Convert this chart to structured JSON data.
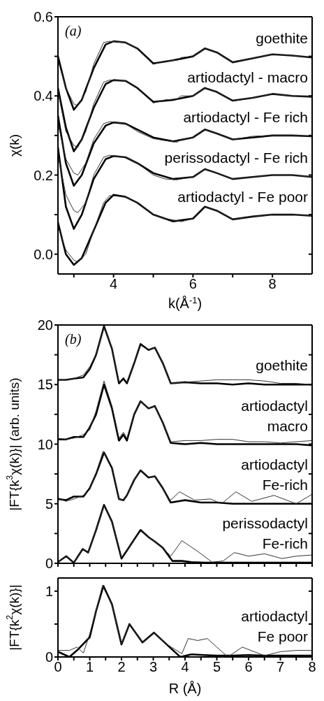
{
  "chart_data": [
    {
      "type": "line",
      "xlabel": "k(Å$^{-1}$)",
      "ylabel": "χ(k)",
      "xlim": [
        2.6,
        9
      ],
      "ylim": [
        -0.05,
        0.6
      ],
      "xticks": [
        {
          "value": 3,
          "label": null
        },
        4,
        {
          "value": 5,
          "label": null
        },
        6,
        {
          "value": 7,
          "label": null
        },
        8
      ],
      "yticks": [
        {
          "value": 0,
          "label": "0.0"
        },
        {
          "value": 0.1,
          "label": null
        },
        0.2,
        {
          "value": 0.3,
          "label": null
        },
        0.4,
        {
          "value": 0.5,
          "label": null
        },
        0.6
      ],
      "annotations": [
        "(a)"
      ],
      "legend": "right",
      "series": [
        {
          "name": "goethite",
          "color": "#000000",
          "x": [
            2.6,
            2.8,
            3.0,
            3.2,
            3.5,
            3.8,
            4.0,
            4.3,
            4.6,
            5.0,
            5.5,
            6.0,
            6.3,
            6.6,
            7.0,
            7.5,
            8.0,
            8.5,
            9.0
          ],
          "values": [
            0.5,
            0.42,
            0.365,
            0.39,
            0.47,
            0.53,
            0.538,
            0.535,
            0.52,
            0.482,
            0.49,
            0.5,
            0.52,
            0.51,
            0.485,
            0.495,
            0.505,
            0.502,
            0.497
          ]
        },
        {
          "color": "#333333",
          "x": [
            2.6,
            2.8,
            3.0,
            3.1,
            3.3,
            3.5,
            3.75,
            3.9,
            4.3,
            4.6,
            5.0,
            5.3,
            5.6,
            5.7,
            6.0,
            6.3,
            6.6,
            7.0,
            7.5,
            8.0,
            8.5,
            9.0
          ],
          "values": [
            0.49,
            0.42,
            0.38,
            0.375,
            0.41,
            0.48,
            0.535,
            0.538,
            0.535,
            0.52,
            0.48,
            0.488,
            0.49,
            0.497,
            0.5,
            0.52,
            0.51,
            0.485,
            0.495,
            0.505,
            0.502,
            0.497
          ]
        },
        {
          "name": "artiodactyl - macro",
          "color": "#000000",
          "x": [
            2.6,
            2.8,
            3.0,
            3.2,
            3.5,
            3.8,
            4.0,
            4.3,
            4.6,
            5.0,
            5.5,
            6.0,
            6.3,
            6.6,
            7.0,
            7.5,
            8.0,
            8.5,
            9.0
          ],
          "values": [
            0.42,
            0.32,
            0.26,
            0.29,
            0.37,
            0.43,
            0.44,
            0.438,
            0.42,
            0.385,
            0.39,
            0.4,
            0.42,
            0.41,
            0.388,
            0.395,
            0.405,
            0.4,
            0.398
          ]
        },
        {
          "color": "#333333",
          "x": [
            2.6,
            2.8,
            3.0,
            3.1,
            3.3,
            3.5,
            3.75,
            3.9,
            4.3,
            4.6,
            5.0,
            5.3,
            5.6,
            5.7,
            6.0,
            6.3,
            6.6,
            7.0,
            7.5,
            8.0,
            8.5,
            9.0
          ],
          "values": [
            0.41,
            0.31,
            0.275,
            0.27,
            0.31,
            0.38,
            0.435,
            0.44,
            0.438,
            0.42,
            0.382,
            0.39,
            0.392,
            0.4,
            0.4,
            0.42,
            0.41,
            0.387,
            0.395,
            0.405,
            0.4,
            0.398
          ]
        },
        {
          "name": "artiodactyl - Fe rich",
          "color": "#000000",
          "x": [
            2.6,
            2.8,
            3.0,
            3.2,
            3.5,
            3.8,
            4.0,
            4.3,
            4.6,
            5.0,
            5.5,
            6.0,
            6.3,
            6.6,
            7.0,
            7.5,
            8.0,
            8.5,
            9.0
          ],
          "values": [
            0.35,
            0.23,
            0.173,
            0.2,
            0.28,
            0.325,
            0.333,
            0.33,
            0.315,
            0.295,
            0.285,
            0.295,
            0.315,
            0.305,
            0.29,
            0.295,
            0.3,
            0.3,
            0.298
          ]
        },
        {
          "color": "#333333",
          "x": [
            2.6,
            2.8,
            3.0,
            3.1,
            3.3,
            3.5,
            3.75,
            3.9,
            4.3,
            4.6,
            5.0,
            5.3,
            5.6,
            5.7,
            6.0,
            6.3,
            6.6,
            7.0,
            7.5,
            8.0,
            8.5,
            9.0
          ],
          "values": [
            0.33,
            0.24,
            0.205,
            0.2,
            0.23,
            0.29,
            0.33,
            0.335,
            0.33,
            0.31,
            0.292,
            0.287,
            0.283,
            0.29,
            0.295,
            0.315,
            0.305,
            0.29,
            0.298,
            0.3,
            0.3,
            0.298
          ]
        },
        {
          "name": "perissodactyl - Fe rich",
          "color": "#000000",
          "x": [
            2.6,
            2.8,
            3.0,
            3.2,
            3.5,
            3.8,
            4.0,
            4.3,
            4.6,
            5.0,
            5.5,
            6.0,
            6.3,
            6.6,
            7.0,
            7.5,
            8.0,
            8.5,
            9.0
          ],
          "values": [
            0.27,
            0.12,
            0.064,
            0.1,
            0.19,
            0.24,
            0.248,
            0.245,
            0.23,
            0.205,
            0.19,
            0.195,
            0.215,
            0.205,
            0.19,
            0.195,
            0.2,
            0.2,
            0.195
          ]
        },
        {
          "color": "#333333",
          "x": [
            2.6,
            2.8,
            3.0,
            3.1,
            3.3,
            3.5,
            3.75,
            3.9,
            4.3,
            4.6,
            5.0,
            5.3,
            5.6,
            5.7,
            6.0,
            6.3,
            6.6,
            7.0,
            7.5,
            8.0,
            8.5,
            9.0
          ],
          "values": [
            0.25,
            0.15,
            0.11,
            0.105,
            0.13,
            0.2,
            0.245,
            0.25,
            0.245,
            0.23,
            0.2,
            0.19,
            0.188,
            0.19,
            0.195,
            0.215,
            0.205,
            0.19,
            0.195,
            0.2,
            0.2,
            0.195
          ]
        },
        {
          "name": "artiodactyl - Fe poor",
          "color": "#000000",
          "x": [
            2.6,
            2.8,
            3.0,
            3.2,
            3.5,
            3.8,
            4.0,
            4.3,
            4.6,
            5.0,
            5.5,
            6.0,
            6.3,
            6.6,
            7.0,
            7.5,
            8.0,
            8.5,
            9.0
          ],
          "values": [
            0.08,
            0.0,
            -0.027,
            -0.01,
            0.06,
            0.13,
            0.15,
            0.145,
            0.13,
            0.1,
            0.083,
            0.09,
            0.12,
            0.11,
            0.088,
            0.095,
            0.1,
            0.1,
            0.097
          ]
        },
        {
          "color": "#333333",
          "x": [
            2.6,
            2.8,
            3.0,
            3.1,
            3.3,
            3.5,
            3.75,
            3.9,
            4.3,
            4.6,
            5.0,
            5.3,
            5.6,
            5.7,
            6.0,
            6.3,
            6.6,
            7.0,
            7.5,
            8.0,
            8.5,
            9.0
          ],
          "values": [
            0.07,
            0.01,
            -0.015,
            -0.02,
            0.0,
            0.06,
            0.13,
            0.148,
            0.145,
            0.13,
            0.1,
            0.09,
            0.085,
            0.082,
            0.09,
            0.12,
            0.11,
            0.088,
            0.095,
            0.1,
            0.1,
            0.097
          ]
        }
      ]
    },
    {
      "type": "line",
      "ylabel": "|FT{k$^{3}$χ(k)}| (arb. units)",
      "xlim": [
        0,
        8
      ],
      "ylim": [
        0,
        20
      ],
      "tick_labels": "y",
      "xticks": [
        0,
        0.5,
        1,
        1.5,
        2,
        2.5,
        3,
        3.5,
        4,
        4.5,
        5,
        5.5,
        6,
        6.5,
        7,
        7.5,
        8
      ],
      "yticks": [
        0,
        {
          "value": 2.5,
          "label": null
        },
        5,
        {
          "value": 7.5,
          "label": null
        },
        10,
        {
          "value": 12.5,
          "label": null
        },
        15,
        {
          "value": 17.5,
          "label": null
        },
        20
      ],
      "annotations": [
        "(b)"
      ],
      "legend": "right",
      "series": [
        {
          "name": "goethite",
          "color": "#000000",
          "x": [
            0,
            0.25,
            0.5,
            0.8,
            1.0,
            1.2,
            1.45,
            1.7,
            1.92,
            2.06,
            2.17,
            2.4,
            2.6,
            2.85,
            3.05,
            3.3,
            3.55,
            4,
            4.5,
            5,
            5.5,
            6,
            6.5,
            7,
            7.5,
            8
          ],
          "values": [
            15.4,
            15.4,
            15.5,
            15.6,
            16.3,
            17.5,
            19.9,
            18.0,
            15.1,
            15.5,
            15.1,
            16.8,
            18.4,
            17.9,
            18.1,
            16.8,
            15.1,
            15.2,
            15.1,
            15.1,
            15.0,
            15.1,
            15.0,
            15.0,
            15.0,
            15.0
          ]
        },
        {
          "color": "#333333",
          "x": [
            0,
            0.25,
            0.5,
            0.8,
            1.0,
            1.2,
            1.45,
            1.7,
            1.92,
            2.06,
            2.17,
            2.4,
            2.6,
            2.85,
            3.05,
            3.3,
            3.55,
            4,
            4.5,
            5,
            5.5,
            6,
            6.5,
            7,
            7.5,
            8
          ],
          "values": [
            15.4,
            15.4,
            15.5,
            15.8,
            16.5,
            17.5,
            19.8,
            18.0,
            15.2,
            15.6,
            15.2,
            16.8,
            18.3,
            17.9,
            18.1,
            16.8,
            15.1,
            15.2,
            15.3,
            15.4,
            15.4,
            15.4,
            15.3,
            15.1,
            15.1,
            15.0
          ]
        },
        {
          "name": "artiodactyl\nmacro",
          "color": "#000000",
          "x": [
            0,
            0.25,
            0.5,
            0.8,
            1.0,
            1.2,
            1.45,
            1.7,
            1.92,
            2.06,
            2.17,
            2.4,
            2.6,
            2.85,
            3.05,
            3.3,
            3.55,
            4,
            4.5,
            5,
            5.5,
            6,
            6.5,
            7,
            7.5,
            8
          ],
          "values": [
            10.4,
            10.4,
            10.6,
            10.6,
            11.4,
            12.5,
            15.0,
            13.0,
            10.3,
            10.8,
            10.3,
            12.5,
            13.6,
            13.0,
            13.2,
            11.8,
            10.1,
            10.0,
            10.1,
            10.0,
            10.0,
            10.0,
            10.0,
            10.0,
            10.0,
            9.9
          ]
        },
        {
          "color": "#333333",
          "x": [
            0,
            0.25,
            0.5,
            0.8,
            1.0,
            1.2,
            1.45,
            1.7,
            1.92,
            2.06,
            2.17,
            2.4,
            2.6,
            2.85,
            3.05,
            3.3,
            3.55,
            4,
            4.5,
            5,
            5.5,
            6,
            6.5,
            7,
            7.5,
            8
          ],
          "values": [
            10.5,
            10.4,
            10.5,
            10.8,
            11.2,
            12.8,
            15.3,
            13.2,
            10.5,
            11.0,
            10.5,
            12.5,
            13.6,
            13.0,
            13.2,
            11.8,
            10.2,
            10.3,
            10.3,
            10.4,
            10.4,
            10.2,
            10.2,
            10.1,
            10.2,
            10.3
          ]
        },
        {
          "name": "artiodactyl\nFe-rich",
          "color": "#000000",
          "x": [
            0,
            0.25,
            0.5,
            0.8,
            1.0,
            1.2,
            1.45,
            1.7,
            1.92,
            2.06,
            2.17,
            2.4,
            2.6,
            2.85,
            3.05,
            3.3,
            3.55,
            4,
            4.5,
            5,
            5.5,
            6,
            6.5,
            7,
            7.5,
            8
          ],
          "values": [
            5.4,
            5.3,
            5.6,
            5.6,
            6.3,
            7.5,
            9.3,
            8.0,
            5.4,
            5.3,
            5.7,
            7.0,
            7.8,
            7.2,
            7.3,
            6.3,
            5.1,
            5.3,
            5.1,
            5.1,
            5.0,
            5.0,
            5.0,
            5.0,
            5.0,
            5.0
          ]
        },
        {
          "color": "#333333",
          "x": [
            0,
            0.25,
            0.5,
            0.8,
            1.0,
            1.2,
            1.42,
            1.7,
            1.92,
            2.06,
            2.17,
            2.4,
            2.6,
            2.85,
            3.05,
            3.3,
            3.5,
            3.83,
            4.3,
            4.8,
            5.15,
            5.6,
            6.1,
            6.8,
            7.5,
            8
          ],
          "values": [
            5.5,
            5.2,
            5.4,
            5.7,
            6.2,
            7.6,
            9.4,
            8.1,
            5.4,
            5.3,
            5.7,
            7.0,
            7.8,
            7.2,
            7.3,
            6.3,
            5.2,
            6.0,
            5.3,
            5.4,
            5.0,
            6.0,
            5.2,
            5.7,
            5.0,
            5.8
          ]
        },
        {
          "name": "perissodactyl\nFe-rich",
          "color": "#000000",
          "x": [
            0,
            0.26,
            0.5,
            0.78,
            0.95,
            1.2,
            1.45,
            1.7,
            2.0,
            2.3,
            2.6,
            2.85,
            3.06,
            3.3,
            3.6,
            3.9,
            4.2,
            4.6,
            5,
            5.5,
            6,
            6.5,
            7,
            7.5,
            8
          ],
          "values": [
            0.1,
            0.6,
            0.05,
            1.2,
            0.9,
            2.8,
            4.9,
            3.5,
            0.4,
            1.6,
            2.8,
            2.2,
            1.8,
            1.3,
            0.2,
            0.2,
            0.1,
            0.05,
            0.05,
            0.05,
            0.05,
            0.05,
            0.05,
            0.05,
            0.05
          ]
        },
        {
          "color": "#333333",
          "x": [
            0,
            0.26,
            0.5,
            0.78,
            0.95,
            1.2,
            1.45,
            1.7,
            2.0,
            2.3,
            2.6,
            2.85,
            3.06,
            3.3,
            3.55,
            3.9,
            4.4,
            4.85,
            5.2,
            5.55,
            6.0,
            6.5,
            7.05,
            7.5,
            8
          ],
          "values": [
            0.1,
            0.6,
            0.05,
            1.2,
            0.9,
            2.8,
            4.8,
            3.5,
            0.5,
            1.6,
            2.7,
            2.2,
            1.8,
            1.3,
            0.6,
            1.9,
            1.0,
            0.1,
            0.2,
            0.9,
            0.6,
            0.8,
            0.4,
            0.6,
            0.7
          ]
        }
      ]
    },
    {
      "type": "line",
      "xlabel": "R (Å)",
      "ylabel": "|FT{k$^{2}$χ(k)}|",
      "xlim": [
        0,
        8
      ],
      "ylim": [
        0,
        1.2
      ],
      "xticks": [
        0,
        {
          "value": 0.5,
          "label": null
        },
        1,
        {
          "value": 1.5,
          "label": null
        },
        2,
        {
          "value": 2.5,
          "label": null
        },
        3,
        {
          "value": 3.5,
          "label": null
        },
        4,
        {
          "value": 4.5,
          "label": null
        },
        5,
        {
          "value": 5.5,
          "label": null
        },
        6,
        {
          "value": 6.5,
          "label": null
        },
        7,
        {
          "value": 7.5,
          "label": null
        },
        8
      ],
      "yticks": [
        0,
        {
          "value": 0.5,
          "label": null
        },
        1
      ],
      "legend": "right",
      "series": [
        {
          "name": "artiodactyl\nFe poor",
          "color": "#000000",
          "x": [
            0,
            0.36,
            0.6,
            1.0,
            1.2,
            1.43,
            1.7,
            2.0,
            2.25,
            2.66,
            3.02,
            3.4,
            3.85,
            4.2,
            4.6,
            5.0,
            5.5,
            6,
            6.5,
            7,
            7.5,
            8
          ],
          "values": [
            0.08,
            0.0,
            0.1,
            0.3,
            0.7,
            1.08,
            0.8,
            0.19,
            0.5,
            0.22,
            0.37,
            0.2,
            0.0,
            0.04,
            0.03,
            0.02,
            0.02,
            0.03,
            0.02,
            0.02,
            0.02,
            0.02
          ]
        },
        {
          "color": "#333333",
          "x": [
            0,
            0.36,
            0.6,
            0.8,
            1.0,
            1.2,
            1.4,
            1.7,
            2.0,
            2.25,
            2.66,
            3.02,
            3.4,
            3.9,
            4.1,
            4.4,
            4.7,
            5.0,
            5.35,
            5.8,
            6.5,
            7.0,
            7.5,
            8
          ],
          "values": [
            0.1,
            0.1,
            0.15,
            0.06,
            0.35,
            0.7,
            1.08,
            0.8,
            0.2,
            0.5,
            0.22,
            0.37,
            0.2,
            0.05,
            0.28,
            0.25,
            0.28,
            0.15,
            0.0,
            0.15,
            0.02,
            0.08,
            0.1,
            0.1
          ]
        }
      ]
    }
  ]
}
